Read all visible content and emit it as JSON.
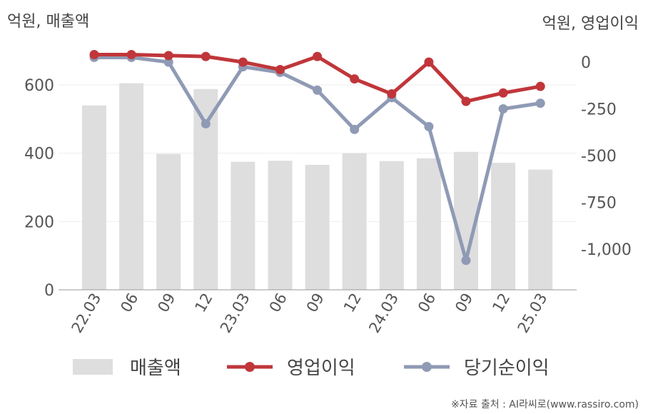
{
  "chart_data": {
    "type": "bar+line",
    "left_axis_title": "억원, 매출액",
    "right_axis_title": "억원, 영업이익",
    "categories": [
      "22.03",
      "06",
      "09",
      "12",
      "23.03",
      "06",
      "09",
      "12",
      "24.03",
      "06",
      "09",
      "12",
      "25.03"
    ],
    "y_left": {
      "min": 0,
      "max": 700,
      "ticks": [
        0,
        200,
        400,
        600
      ]
    },
    "y_right": {
      "min": -1200,
      "max": 50,
      "ticks": [
        0,
        -250,
        -500,
        -750,
        -1000
      ],
      "tick_labels": [
        "0",
        "-250",
        "-500",
        "-750",
        "-1,000"
      ]
    },
    "series": [
      {
        "name": "매출액",
        "type": "bar",
        "axis": "left",
        "color": "#dedede",
        "values": [
          540,
          605,
          398,
          588,
          375,
          378,
          366,
          400,
          377,
          385,
          404,
          372,
          352
        ]
      },
      {
        "name": "영업이익",
        "type": "line",
        "axis": "right",
        "color": "#c0363a",
        "values": [
          40,
          40,
          35,
          30,
          0,
          -40,
          30,
          -90,
          -170,
          0,
          -210,
          -165,
          -130
        ]
      },
      {
        "name": "당기순이익",
        "type": "line",
        "axis": "right",
        "color": "#8f9ab5",
        "values": [
          25,
          25,
          0,
          -330,
          -25,
          -55,
          -150,
          -360,
          -190,
          -345,
          -1060,
          -250,
          -220
        ]
      }
    ],
    "grid": true,
    "legend_position": "bottom"
  },
  "source": "※자료 출처 : AI라씨로(www.rassiro.com)"
}
